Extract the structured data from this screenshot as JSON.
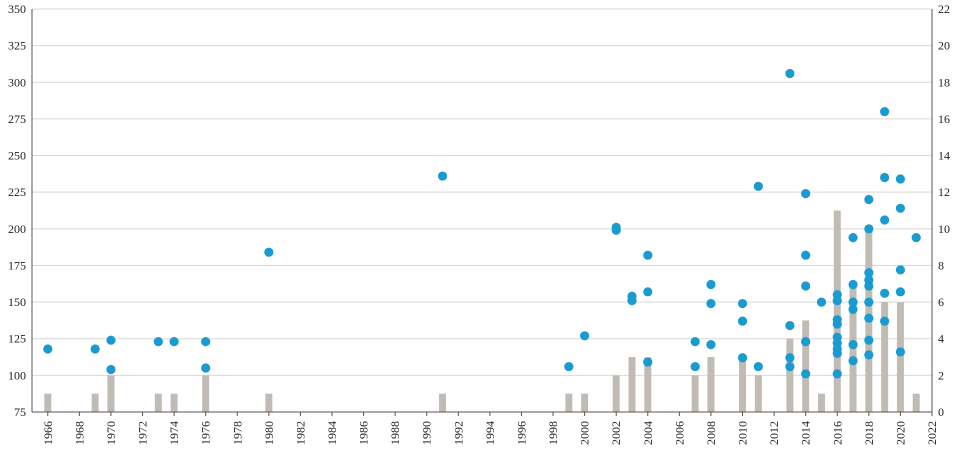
{
  "chart_data": {
    "type": "bar+scatter",
    "title": "",
    "xlabel": "",
    "ylabel_left": "",
    "ylabel_right": "",
    "x_axis": {
      "range": [
        1965,
        2022
      ],
      "ticks": [
        1966,
        1968,
        1970,
        1972,
        1974,
        1976,
        1978,
        1980,
        1982,
        1984,
        1986,
        1988,
        1990,
        1992,
        1994,
        1996,
        1998,
        2000,
        2002,
        2004,
        2006,
        2008,
        2010,
        2012,
        2014,
        2016,
        2018,
        2020,
        2022
      ]
    },
    "y_left": {
      "range": [
        75,
        350
      ],
      "ticks": [
        75,
        100,
        125,
        150,
        175,
        200,
        225,
        250,
        275,
        300,
        325,
        350
      ]
    },
    "y_right": {
      "range": [
        0,
        22
      ],
      "ticks": [
        0,
        2,
        4,
        6,
        8,
        10,
        12,
        14,
        16,
        18,
        20,
        22
      ]
    },
    "grid": true,
    "colors": {
      "bars": "#c0bbb5",
      "points": "#1a9bd0",
      "grid": "#d9d9d9",
      "axis": "#555555"
    },
    "bars": {
      "axis": "right",
      "years": [
        1966,
        1969,
        1970,
        1973,
        1974,
        1976,
        1980,
        1991,
        1999,
        2000,
        2002,
        2003,
        2004,
        2007,
        2008,
        2010,
        2011,
        2013,
        2014,
        2015,
        2016,
        2017,
        2018,
        2019,
        2020,
        2021
      ],
      "counts": [
        1,
        1,
        2,
        1,
        1,
        2,
        1,
        1,
        1,
        1,
        2,
        3,
        3,
        2,
        3,
        3,
        2,
        4,
        5,
        1,
        11,
        7,
        10,
        6,
        6,
        1
      ]
    },
    "points": {
      "axis": "left",
      "data": [
        [
          1966,
          118
        ],
        [
          1969,
          118
        ],
        [
          1970,
          124
        ],
        [
          1970,
          104
        ],
        [
          1973,
          123
        ],
        [
          1974,
          123
        ],
        [
          1976,
          123
        ],
        [
          1976,
          105
        ],
        [
          1980,
          184
        ],
        [
          1991,
          236
        ],
        [
          1999,
          106
        ],
        [
          2000,
          127
        ],
        [
          2002,
          201
        ],
        [
          2002,
          199
        ],
        [
          2003,
          154
        ],
        [
          2003,
          151
        ],
        [
          2004,
          182
        ],
        [
          2004,
          157
        ],
        [
          2004,
          109
        ],
        [
          2007,
          123
        ],
        [
          2007,
          106
        ],
        [
          2008,
          162
        ],
        [
          2008,
          149
        ],
        [
          2008,
          121
        ],
        [
          2010,
          149
        ],
        [
          2010,
          137
        ],
        [
          2010,
          112
        ],
        [
          2011,
          229
        ],
        [
          2011,
          106
        ],
        [
          2013,
          306
        ],
        [
          2013,
          134
        ],
        [
          2013,
          112
        ],
        [
          2013,
          106
        ],
        [
          2014,
          224
        ],
        [
          2014,
          182
        ],
        [
          2014,
          161
        ],
        [
          2014,
          123
        ],
        [
          2014,
          101
        ],
        [
          2015,
          150
        ],
        [
          2016,
          155
        ],
        [
          2016,
          151
        ],
        [
          2016,
          138
        ],
        [
          2016,
          135
        ],
        [
          2016,
          126
        ],
        [
          2016,
          122
        ],
        [
          2016,
          118
        ],
        [
          2016,
          115
        ],
        [
          2016,
          101
        ],
        [
          2017,
          194
        ],
        [
          2017,
          162
        ],
        [
          2017,
          150
        ],
        [
          2017,
          145
        ],
        [
          2017,
          121
        ],
        [
          2017,
          110
        ],
        [
          2018,
          220
        ],
        [
          2018,
          200
        ],
        [
          2018,
          170
        ],
        [
          2018,
          165
        ],
        [
          2018,
          161
        ],
        [
          2018,
          150
        ],
        [
          2018,
          139
        ],
        [
          2018,
          124
        ],
        [
          2018,
          114
        ],
        [
          2019,
          280
        ],
        [
          2019,
          235
        ],
        [
          2019,
          206
        ],
        [
          2019,
          156
        ],
        [
          2019,
          137
        ],
        [
          2020,
          234
        ],
        [
          2020,
          214
        ],
        [
          2020,
          172
        ],
        [
          2020,
          157
        ],
        [
          2020,
          116
        ],
        [
          2021,
          194
        ]
      ]
    }
  }
}
